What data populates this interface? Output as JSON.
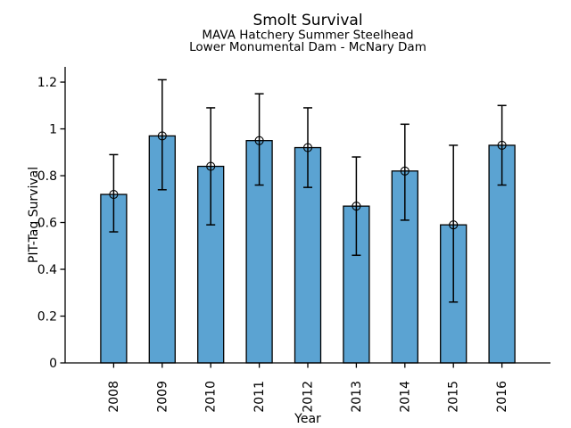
{
  "window": {
    "background": "#ffffff"
  },
  "chart_data": {
    "type": "bar",
    "title": "Smolt Survival",
    "subtitle_line1": "MAVA Hatchery Summer Steelhead",
    "subtitle_line2": "Lower Monumental Dam - McNary Dam",
    "xlabel": "Year",
    "ylabel": "PIT-Tag Survival",
    "categories": [
      "2008",
      "2009",
      "2010",
      "2011",
      "2012",
      "2013",
      "2014",
      "2015",
      "2016"
    ],
    "series": [
      {
        "name": "PIT-Tag Survival",
        "values": [
          0.72,
          0.97,
          0.84,
          0.95,
          0.92,
          0.67,
          0.82,
          0.59,
          0.93
        ],
        "error_low": [
          0.56,
          0.74,
          0.59,
          0.76,
          0.75,
          0.46,
          0.61,
          0.26,
          0.76
        ],
        "error_high": [
          0.89,
          1.21,
          1.09,
          1.15,
          1.09,
          0.88,
          1.02,
          0.93,
          1.1
        ]
      }
    ],
    "yticks": [
      0,
      0.2,
      0.4,
      0.6,
      0.8,
      1,
      1.2
    ],
    "ytick_labels": [
      "0",
      "0.2",
      "0.4",
      "0.6",
      "0.8",
      "1",
      "1.2"
    ],
    "ylim": [
      0,
      1.265
    ],
    "grid": false,
    "legend": null,
    "marker": "open-circle-plus",
    "colors": {
      "bar": "#5BA3D2",
      "bar_edge": "#000000",
      "error": "#000000",
      "text": "#000000",
      "background": "#ffffff"
    }
  }
}
